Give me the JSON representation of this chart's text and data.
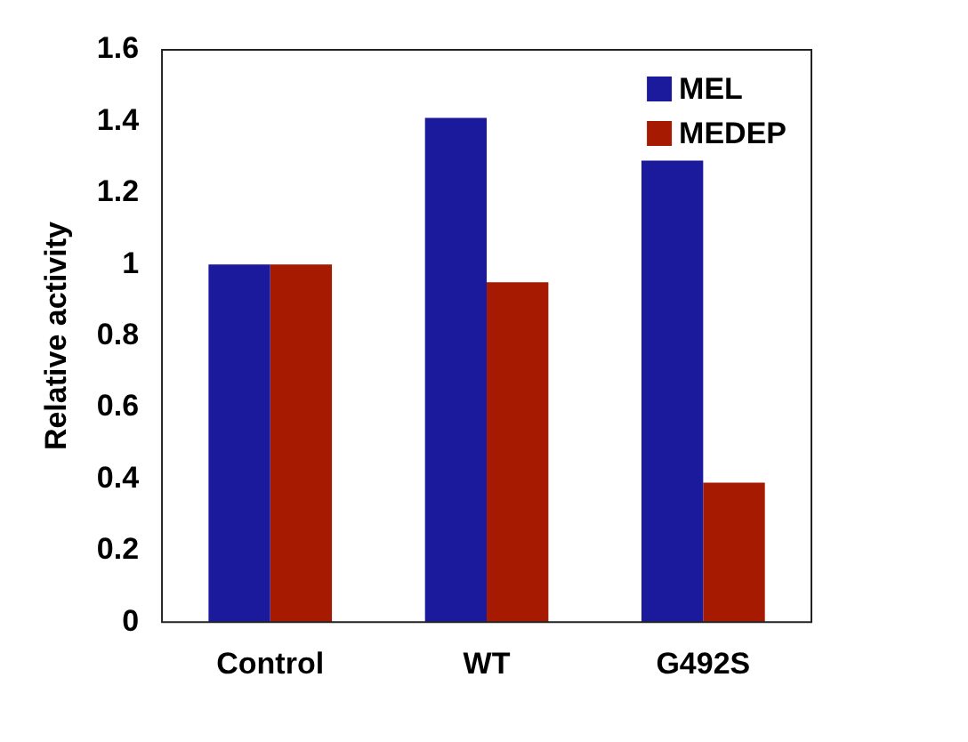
{
  "chart_data": {
    "type": "bar",
    "ylabel": "Relative activity",
    "categories": [
      "Control",
      "WT",
      "G492S"
    ],
    "series": [
      {
        "name": "MEL",
        "color": "#1c1a9c",
        "values": [
          1.0,
          1.41,
          1.29
        ]
      },
      {
        "name": "MEDEP",
        "color": "#a51a00",
        "values": [
          1.0,
          0.95,
          0.39
        ]
      }
    ],
    "ylim": [
      0,
      1.6
    ],
    "yticks": [
      0,
      0.2,
      0.4,
      0.6,
      0.8,
      1,
      1.2,
      1.4,
      1.6
    ],
    "grid": false,
    "legend": "top right"
  }
}
